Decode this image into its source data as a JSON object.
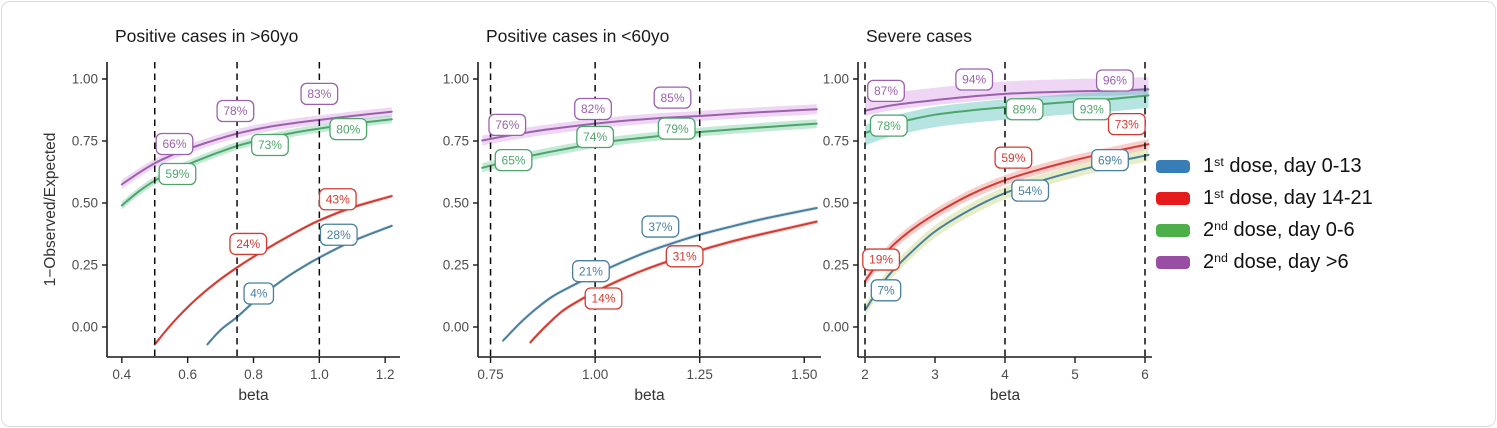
{
  "figure": {
    "ylabel": "1−Observed/Expected",
    "xlabel": "beta",
    "title_color": "#1a1a1a",
    "axis_color": "#1a1a1a",
    "tick_text_color": "#4d4d4d",
    "vline_color": "#0a0a0a"
  },
  "series_styles": {
    "dose1_early": {
      "name": "1st dose, day 0-13",
      "color": "#4a7f9d",
      "legend_color": "#377eb8",
      "band_color": "rgba(120,160,190,0.25)"
    },
    "dose1_late": {
      "name": "1st dose, day 14-21",
      "color": "#d23b33",
      "legend_color": "#e41a1c",
      "band_color": "rgba(235,90,80,0.30)"
    },
    "dose2_early": {
      "name": "2nd dose, day 0-6",
      "color": "#4ea56a",
      "legend_color": "#4daf4a",
      "band_color": "rgba(70,190,130,0.32)"
    },
    "dose2_late": {
      "name": "2nd dose, day >6",
      "color": "#9c61ad",
      "legend_color": "#984ea3",
      "band_color": "rgba(200,120,220,0.30)"
    }
  },
  "legend": {
    "items": [
      {
        "series": "dose1_early",
        "base": "1",
        "ordinal": "st",
        "rest": " dose, day 0-13"
      },
      {
        "series": "dose1_late",
        "base": "1",
        "ordinal": "st",
        "rest": " dose, day 14-21"
      },
      {
        "series": "dose2_early",
        "base": "2",
        "ordinal": "nd",
        "rest": " dose, day 0-6"
      },
      {
        "series": "dose2_late",
        "base": "2",
        "ordinal": "nd",
        "rest": " dose, day >6"
      }
    ]
  },
  "chart_data": [
    {
      "type": "line",
      "title": "Positive cases in >60yo",
      "xlabel": "beta",
      "ylabel": "1−Observed/Expected",
      "show_ylabel": true,
      "xlim": [
        0.355,
        1.245
      ],
      "ylim": [
        -0.12,
        1.05
      ],
      "xticks": [
        0.4,
        0.6,
        0.8,
        1.0,
        1.2
      ],
      "xtick_labels": [
        "0.4",
        "0.6",
        "0.8",
        "1.0",
        "1.2"
      ],
      "yticks": [
        0,
        0.25,
        0.5,
        0.75,
        1
      ],
      "ytick_labels": [
        "0.00",
        "0.25",
        "0.50",
        "0.75",
        "1.00"
      ],
      "vlines": [
        0.5,
        0.75,
        1.0
      ],
      "series": [
        {
          "id": "dose2_late",
          "band": [
            0.018,
            0.018
          ],
          "points": [
            [
              0.4,
              0.575
            ],
            [
              0.45,
              0.62
            ],
            [
              0.5,
              0.66
            ],
            [
              0.55,
              0.692
            ],
            [
              0.6,
              0.717
            ],
            [
              0.65,
              0.74
            ],
            [
              0.7,
              0.761
            ],
            [
              0.75,
              0.78
            ],
            [
              0.8,
              0.795
            ],
            [
              0.85,
              0.808
            ],
            [
              0.9,
              0.818
            ],
            [
              0.95,
              0.827
            ],
            [
              1.0,
              0.835
            ],
            [
              1.1,
              0.851
            ],
            [
              1.22,
              0.868
            ]
          ],
          "labels": [
            {
              "x": 0.56,
              "y": 0.738,
              "text": "66%"
            },
            {
              "x": 0.745,
              "y": 0.871,
              "text": "78%"
            },
            {
              "x": 1.0,
              "y": 0.94,
              "text": "83%"
            }
          ]
        },
        {
          "id": "dose2_early",
          "band": [
            0.016,
            0.016
          ],
          "points": [
            [
              0.4,
              0.49
            ],
            [
              0.45,
              0.545
            ],
            [
              0.5,
              0.59
            ],
            [
              0.55,
              0.625
            ],
            [
              0.6,
              0.655
            ],
            [
              0.65,
              0.682
            ],
            [
              0.7,
              0.707
            ],
            [
              0.75,
              0.73
            ],
            [
              0.8,
              0.748
            ],
            [
              0.85,
              0.764
            ],
            [
              0.9,
              0.778
            ],
            [
              0.95,
              0.79
            ],
            [
              1.0,
              0.8
            ],
            [
              1.1,
              0.819
            ],
            [
              1.22,
              0.838
            ]
          ],
          "labels": [
            {
              "x": 0.569,
              "y": 0.617,
              "text": "59%"
            },
            {
              "x": 0.85,
              "y": 0.734,
              "text": "73%"
            },
            {
              "x": 1.088,
              "y": 0.798,
              "text": "80%"
            }
          ]
        },
        {
          "id": "dose1_late",
          "band": [
            0.007,
            0.007
          ],
          "points": [
            [
              0.5,
              -0.07
            ],
            [
              0.55,
              0.01
            ],
            [
              0.6,
              0.08
            ],
            [
              0.65,
              0.14
            ],
            [
              0.7,
              0.193
            ],
            [
              0.75,
              0.24
            ],
            [
              0.8,
              0.283
            ],
            [
              0.85,
              0.323
            ],
            [
              0.9,
              0.361
            ],
            [
              0.95,
              0.397
            ],
            [
              1.0,
              0.43
            ],
            [
              1.1,
              0.482
            ],
            [
              1.22,
              0.528
            ]
          ],
          "labels": [
            {
              "x": 0.784,
              "y": 0.335,
              "text": "24%"
            },
            {
              "x": 1.056,
              "y": 0.515,
              "text": "43%"
            }
          ]
        },
        {
          "id": "dose1_early",
          "band": [
            0.007,
            0.007
          ],
          "points": [
            [
              0.66,
              -0.07
            ],
            [
              0.7,
              -0.012
            ],
            [
              0.75,
              0.04
            ],
            [
              0.8,
              0.1
            ],
            [
              0.85,
              0.152
            ],
            [
              0.9,
              0.2
            ],
            [
              0.95,
              0.242
            ],
            [
              1.0,
              0.28
            ],
            [
              1.1,
              0.346
            ],
            [
              1.22,
              0.408
            ]
          ],
          "labels": [
            {
              "x": 0.816,
              "y": 0.135,
              "text": "4%"
            },
            {
              "x": 1.059,
              "y": 0.372,
              "text": "28%"
            }
          ]
        }
      ]
    },
    {
      "type": "line",
      "title": "Positive cases in <60yo",
      "xlabel": "beta",
      "show_ylabel": false,
      "xlim": [
        0.72,
        1.54
      ],
      "ylim": [
        -0.12,
        1.05
      ],
      "xticks": [
        0.75,
        1.0,
        1.25,
        1.5
      ],
      "xtick_labels": [
        "0.75",
        "1.00",
        "1.25",
        "1.50"
      ],
      "yticks": [
        0,
        0.25,
        0.5,
        0.75,
        1
      ],
      "ytick_labels": [
        "0.00",
        "0.25",
        "0.50",
        "0.75",
        "1.00"
      ],
      "vlines": [
        0.75,
        1.0,
        1.25
      ],
      "series": [
        {
          "id": "dose2_late",
          "band": [
            0.02,
            0.02
          ],
          "points": [
            [
              0.73,
              0.752
            ],
            [
              0.78,
              0.768
            ],
            [
              0.83,
              0.782
            ],
            [
              0.88,
              0.795
            ],
            [
              0.93,
              0.806
            ],
            [
              1.0,
              0.82
            ],
            [
              1.08,
              0.833
            ],
            [
              1.16,
              0.843
            ],
            [
              1.25,
              0.851
            ],
            [
              1.35,
              0.862
            ],
            [
              1.45,
              0.871
            ],
            [
              1.53,
              0.878
            ]
          ],
          "labels": [
            {
              "x": 0.79,
              "y": 0.815,
              "text": "76%"
            },
            {
              "x": 0.995,
              "y": 0.879,
              "text": "82%"
            },
            {
              "x": 1.185,
              "y": 0.925,
              "text": "85%"
            }
          ]
        },
        {
          "id": "dose2_early",
          "band": [
            0.018,
            0.018
          ],
          "points": [
            [
              0.73,
              0.642
            ],
            [
              0.78,
              0.664
            ],
            [
              0.83,
              0.684
            ],
            [
              0.88,
              0.702
            ],
            [
              0.93,
              0.718
            ],
            [
              1.0,
              0.74
            ],
            [
              1.08,
              0.757
            ],
            [
              1.16,
              0.771
            ],
            [
              1.25,
              0.786
            ],
            [
              1.35,
              0.799
            ],
            [
              1.45,
              0.811
            ],
            [
              1.53,
              0.82
            ]
          ],
          "labels": [
            {
              "x": 0.805,
              "y": 0.673,
              "text": "65%"
            },
            {
              "x": 1.0,
              "y": 0.766,
              "text": "74%"
            },
            {
              "x": 1.195,
              "y": 0.8,
              "text": "79%"
            }
          ]
        },
        {
          "id": "dose1_early",
          "band": [
            0.008,
            0.008
          ],
          "points": [
            [
              0.78,
              -0.055
            ],
            [
              0.82,
              0.015
            ],
            [
              0.86,
              0.075
            ],
            [
              0.9,
              0.125
            ],
            [
              0.95,
              0.17
            ],
            [
              1.0,
              0.212
            ],
            [
              1.06,
              0.258
            ],
            [
              1.12,
              0.3
            ],
            [
              1.18,
              0.335
            ],
            [
              1.25,
              0.372
            ],
            [
              1.32,
              0.403
            ],
            [
              1.4,
              0.435
            ],
            [
              1.53,
              0.48
            ]
          ],
          "labels": [
            {
              "x": 0.99,
              "y": 0.225,
              "text": "21%"
            },
            {
              "x": 1.156,
              "y": 0.405,
              "text": "37%"
            }
          ]
        },
        {
          "id": "dose1_late",
          "band": [
            0.008,
            0.008
          ],
          "points": [
            [
              0.845,
              -0.062
            ],
            [
              0.88,
              0.0
            ],
            [
              0.92,
              0.062
            ],
            [
              0.96,
              0.105
            ],
            [
              1.0,
              0.142
            ],
            [
              1.06,
              0.19
            ],
            [
              1.12,
              0.232
            ],
            [
              1.18,
              0.268
            ],
            [
              1.25,
              0.308
            ],
            [
              1.32,
              0.342
            ],
            [
              1.4,
              0.375
            ],
            [
              1.53,
              0.425
            ]
          ],
          "labels": [
            {
              "x": 1.02,
              "y": 0.115,
              "text": "14%"
            },
            {
              "x": 1.214,
              "y": 0.285,
              "text": "31%"
            }
          ]
        }
      ]
    },
    {
      "type": "line",
      "title": "Severe cases",
      "xlabel": "beta",
      "show_ylabel": false,
      "xlim": [
        1.9,
        6.1
      ],
      "ylim": [
        -0.12,
        1.05
      ],
      "xticks": [
        2,
        3,
        4,
        5,
        6
      ],
      "xtick_labels": [
        "2",
        "3",
        "4",
        "5",
        "6"
      ],
      "yticks": [
        0,
        0.25,
        0.5,
        0.75,
        1
      ],
      "ytick_labels": [
        "0.00",
        "0.25",
        "0.50",
        "0.75",
        "1.00"
      ],
      "vlines": [
        2,
        4,
        6
      ],
      "series": [
        {
          "id": "dose2_late",
          "band": [
            0.02,
            0.05
          ],
          "points": [
            [
              2,
              0.872
            ],
            [
              2.3,
              0.89
            ],
            [
              2.6,
              0.902
            ],
            [
              3,
              0.915
            ],
            [
              3.5,
              0.929
            ],
            [
              4,
              0.94
            ],
            [
              4.5,
              0.946
            ],
            [
              5,
              0.95
            ],
            [
              5.5,
              0.953
            ],
            [
              6.05,
              0.958
            ]
          ],
          "labels": [
            {
              "x": 2.3,
              "y": 0.952,
              "text": "87%"
            },
            {
              "x": 3.56,
              "y": 0.998,
              "text": "94%"
            },
            {
              "x": 5.57,
              "y": 0.994,
              "text": "96%"
            }
          ]
        },
        {
          "id": "dose2_early",
          "band": [
            0.05,
            0.032
          ],
          "band_color": "rgba(60,185,175,0.38)",
          "points": [
            [
              2,
              0.782
            ],
            [
              2.3,
              0.812
            ],
            [
              2.6,
              0.833
            ],
            [
              3,
              0.856
            ],
            [
              3.5,
              0.873
            ],
            [
              4,
              0.886
            ],
            [
              4.5,
              0.898
            ],
            [
              5,
              0.909
            ],
            [
              5.5,
              0.919
            ],
            [
              6.05,
              0.934
            ]
          ],
          "labels": [
            {
              "x": 2.34,
              "y": 0.812,
              "text": "78%"
            },
            {
              "x": 4.28,
              "y": 0.878,
              "text": "89%"
            },
            {
              "x": 5.24,
              "y": 0.878,
              "text": "93%"
            }
          ]
        },
        {
          "id": "dose1_late",
          "band": [
            0.02,
            0.02
          ],
          "points": [
            [
              2,
              0.185
            ],
            [
              2.3,
              0.3
            ],
            [
              2.6,
              0.378
            ],
            [
              3,
              0.455
            ],
            [
              3.5,
              0.533
            ],
            [
              4,
              0.592
            ],
            [
              4.5,
              0.636
            ],
            [
              5,
              0.673
            ],
            [
              5.5,
              0.705
            ],
            [
              6.05,
              0.737
            ]
          ],
          "labels": [
            {
              "x": 2.23,
              "y": 0.272,
              "text": "19%"
            },
            {
              "x": 4.12,
              "y": 0.683,
              "text": "59%"
            },
            {
              "x": 5.74,
              "y": 0.818,
              "text": "73%"
            }
          ]
        },
        {
          "id": "dose1_early",
          "band": [
            0.025,
            0.025
          ],
          "band_color": "rgba(185,205,95,0.35)",
          "points": [
            [
              2,
              0.068
            ],
            [
              2.3,
              0.195
            ],
            [
              2.6,
              0.285
            ],
            [
              3,
              0.385
            ],
            [
              3.5,
              0.472
            ],
            [
              4,
              0.54
            ],
            [
              4.5,
              0.588
            ],
            [
              5,
              0.628
            ],
            [
              5.5,
              0.661
            ],
            [
              6.05,
              0.694
            ]
          ],
          "labels": [
            {
              "x": 2.3,
              "y": 0.148,
              "text": "7%"
            },
            {
              "x": 4.36,
              "y": 0.55,
              "text": "54%"
            },
            {
              "x": 5.5,
              "y": 0.673,
              "text": "69%"
            }
          ]
        }
      ]
    }
  ]
}
